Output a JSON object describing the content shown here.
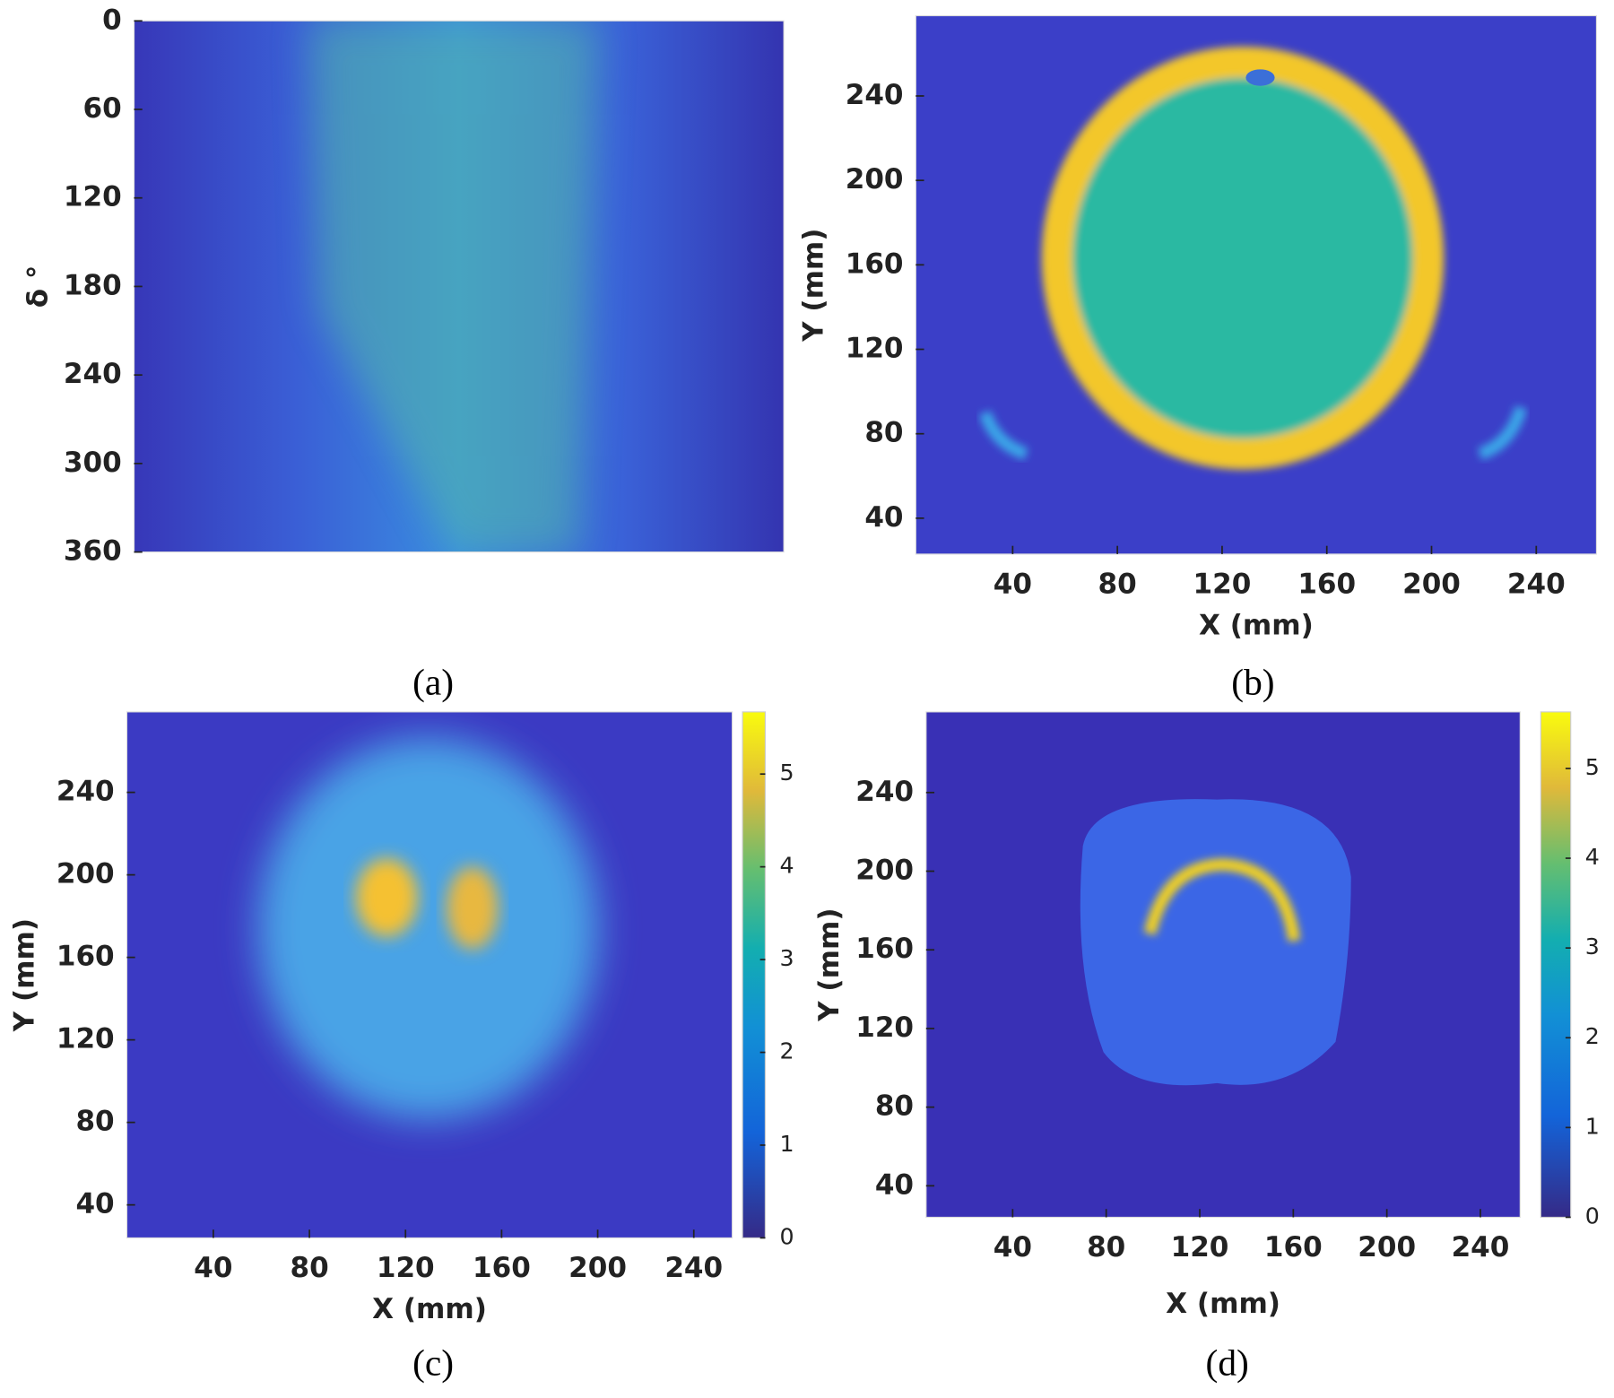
{
  "chart_data": [
    {
      "type": "heatmap",
      "caption": "(a)",
      "ylabel": "δ °",
      "ylim": [
        360,
        0
      ],
      "yticks": [
        0,
        60,
        120,
        180,
        240,
        300,
        360
      ]
    },
    {
      "type": "heatmap",
      "caption": "(b)",
      "xlabel": "X (mm)",
      "ylabel": "Y (mm)",
      "xlim": [
        3,
        263
      ],
      "xticks": [
        40,
        80,
        120,
        160,
        200,
        240
      ],
      "ylim": [
        23,
        278
      ],
      "yticks": [
        40,
        80,
        120,
        160,
        200,
        240
      ]
    },
    {
      "type": "heatmap",
      "caption": "(c)",
      "xlabel": "X (mm)",
      "ylabel": "Y (mm)",
      "xlim": [
        4,
        256
      ],
      "xticks": [
        40,
        80,
        120,
        160,
        200,
        240
      ],
      "ylim": [
        24,
        279
      ],
      "yticks": [
        40,
        80,
        120,
        160,
        200,
        240
      ],
      "colorbar": {
        "lim": [
          0,
          5.67
        ],
        "ticks": [
          0,
          1,
          2,
          3,
          4,
          5
        ]
      }
    },
    {
      "type": "heatmap",
      "caption": "(d)",
      "xlabel": "X (mm)",
      "ylabel": "Y (mm)",
      "xlim": [
        3,
        257
      ],
      "xticks": [
        40,
        80,
        120,
        160,
        200,
        240
      ],
      "ylim": [
        24,
        281
      ],
      "yticks": [
        40,
        80,
        120,
        160,
        200,
        240
      ],
      "colorbar": {
        "lim": [
          0,
          5.63
        ],
        "ticks": [
          0,
          1,
          2,
          3,
          4,
          5
        ]
      }
    }
  ]
}
